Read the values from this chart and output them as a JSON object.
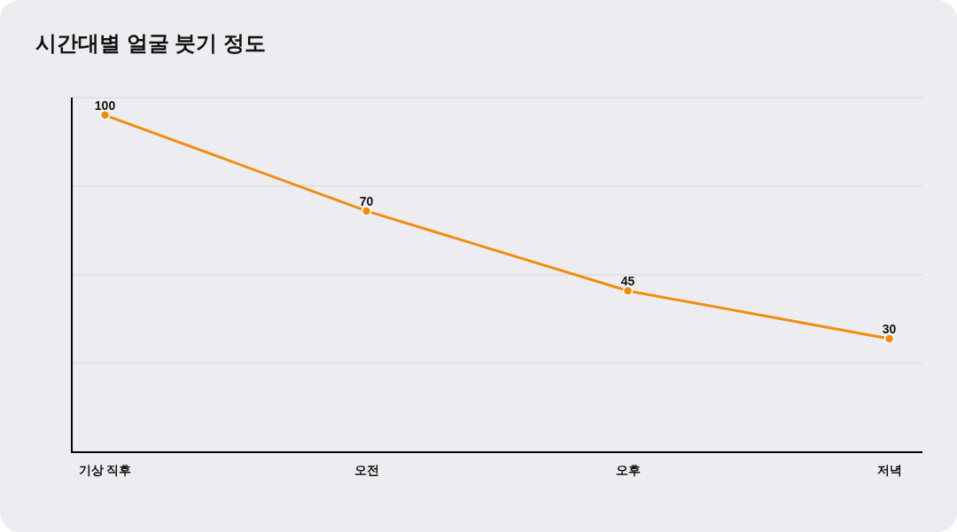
{
  "chart_data": {
    "type": "line",
    "title": "시간대별 얼굴 붓기 정도",
    "categories": [
      "기상 직후",
      "오전",
      "오후",
      "저녁"
    ],
    "series": [
      {
        "color": "#f28c0e",
        "values": [
          100,
          70,
          45,
          30
        ]
      }
    ],
    "ylim": [
      -5.5,
      105.5
    ],
    "yticks": [
      {
        "value": 22.3,
        "label": null
      },
      {
        "value": 50,
        "label": null
      },
      {
        "value": 77.8,
        "label": null
      },
      {
        "value": 105.5,
        "label": null
      }
    ],
    "grid": "y",
    "marker": "circle",
    "data_labels": true,
    "tick_labels": "x"
  }
}
